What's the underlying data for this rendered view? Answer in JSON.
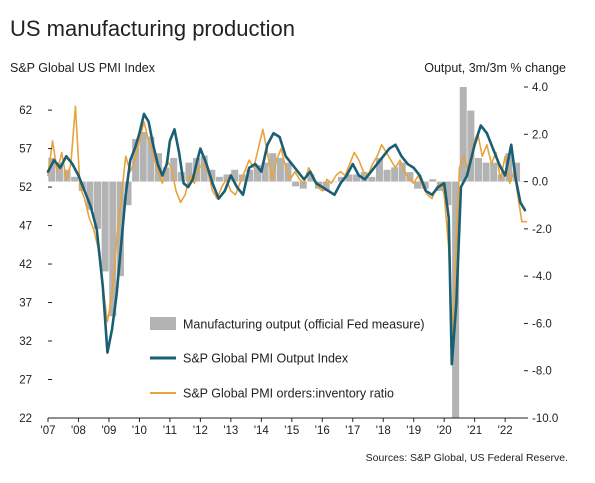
{
  "chart_data": {
    "type": "bar+line",
    "title": "US manufacturing production",
    "left_axis_label": "S&P Global US PMI Index",
    "right_axis_label": "Output, 3m/3m % change",
    "source": "Sources: S&P Global, US Federal Reserve.",
    "left_axis": {
      "ylim": [
        22,
        65
      ],
      "ticks": [
        22,
        27,
        32,
        37,
        42,
        47,
        52,
        57,
        62
      ]
    },
    "right_axis": {
      "ylim": [
        -10.0,
        4.0
      ],
      "ticks": [
        "-10.0",
        "-8.0",
        "-6.0",
        "-4.0",
        "-2.0",
        "0.0",
        "2.0",
        "4.0"
      ]
    },
    "x_axis": {
      "xlim": [
        2007.0,
        2022.75
      ],
      "ticks": [
        2007,
        2008,
        2009,
        2010,
        2011,
        2012,
        2013,
        2014,
        2015,
        2016,
        2017,
        2018,
        2019,
        2020,
        2021,
        2022
      ],
      "tick_labels": [
        "'07",
        "'08",
        "'09",
        "'10",
        "'11",
        "'12",
        "'13",
        "'14",
        "'15",
        "'16",
        "'17",
        "'18",
        "'19",
        "'20",
        "'21",
        "'22"
      ]
    },
    "grid": false,
    "legend": {
      "placement": "center-bottom",
      "entries": [
        "Manufacturing output (official Fed measure)",
        "S&P Global PMI Output Index",
        "S&P Global PMI orders:inventory ratio"
      ]
    },
    "series": [
      {
        "name": "Manufacturing output (official Fed measure)",
        "kind": "bar",
        "axis": "right",
        "color": "#b3b3b3",
        "points": [
          [
            2007.0,
            1.0
          ],
          [
            2007.25,
            0.8
          ],
          [
            2007.5,
            0.5
          ],
          [
            2007.75,
            0.2
          ],
          [
            2008.0,
            -0.4
          ],
          [
            2008.25,
            -1.2
          ],
          [
            2008.5,
            -2.0
          ],
          [
            2008.75,
            -3.8
          ],
          [
            2009.0,
            -5.7
          ],
          [
            2009.25,
            -4.0
          ],
          [
            2009.5,
            -1.0
          ],
          [
            2009.75,
            1.8
          ],
          [
            2010.0,
            2.1
          ],
          [
            2010.25,
            1.9
          ],
          [
            2010.5,
            1.2
          ],
          [
            2010.75,
            0.6
          ],
          [
            2011.0,
            1.0
          ],
          [
            2011.25,
            0.4
          ],
          [
            2011.5,
            0.8
          ],
          [
            2011.75,
            1.0
          ],
          [
            2012.0,
            1.1
          ],
          [
            2012.25,
            0.5
          ],
          [
            2012.5,
            0.2
          ],
          [
            2012.75,
            0.3
          ],
          [
            2013.0,
            0.5
          ],
          [
            2013.25,
            0.3
          ],
          [
            2013.5,
            0.5
          ],
          [
            2013.75,
            0.7
          ],
          [
            2014.0,
            0.8
          ],
          [
            2014.25,
            1.2
          ],
          [
            2014.5,
            1.0
          ],
          [
            2014.75,
            0.8
          ],
          [
            2015.0,
            -0.2
          ],
          [
            2015.25,
            -0.3
          ],
          [
            2015.5,
            0.3
          ],
          [
            2015.75,
            -0.3
          ],
          [
            2016.0,
            -0.4
          ],
          [
            2016.25,
            0.0
          ],
          [
            2016.5,
            0.2
          ],
          [
            2016.75,
            0.3
          ],
          [
            2017.0,
            0.3
          ],
          [
            2017.25,
            0.4
          ],
          [
            2017.5,
            0.2
          ],
          [
            2017.75,
            1.0
          ],
          [
            2018.0,
            0.5
          ],
          [
            2018.25,
            0.6
          ],
          [
            2018.5,
            0.8
          ],
          [
            2018.75,
            0.4
          ],
          [
            2019.0,
            -0.3
          ],
          [
            2019.25,
            -0.3
          ],
          [
            2019.5,
            0.1
          ],
          [
            2019.75,
            -0.4
          ],
          [
            2020.0,
            -1.0
          ],
          [
            2020.25,
            -10.0
          ],
          [
            2020.5,
            4.0
          ],
          [
            2020.75,
            3.0
          ],
          [
            2021.0,
            1.0
          ],
          [
            2021.25,
            0.8
          ],
          [
            2021.5,
            0.8
          ],
          [
            2021.75,
            0.3
          ],
          [
            2022.0,
            1.2
          ],
          [
            2022.25,
            0.8
          ],
          [
            2022.5,
            0.0
          ]
        ]
      },
      {
        "name": "S&P Global PMI Output Index",
        "kind": "line",
        "axis": "left",
        "color": "#1a5f73",
        "points": [
          [
            2007.0,
            54.0
          ],
          [
            2007.2,
            55.5
          ],
          [
            2007.4,
            54.5
          ],
          [
            2007.6,
            56.0
          ],
          [
            2007.8,
            55.0
          ],
          [
            2008.0,
            53.5
          ],
          [
            2008.2,
            51.5
          ],
          [
            2008.4,
            49.5
          ],
          [
            2008.6,
            46.5
          ],
          [
            2008.8,
            39.0
          ],
          [
            2008.95,
            30.5
          ],
          [
            2009.1,
            33.5
          ],
          [
            2009.25,
            38.0
          ],
          [
            2009.4,
            44.5
          ],
          [
            2009.55,
            51.0
          ],
          [
            2009.7,
            55.5
          ],
          [
            2009.85,
            57.0
          ],
          [
            2010.0,
            59.0
          ],
          [
            2010.15,
            61.5
          ],
          [
            2010.3,
            60.5
          ],
          [
            2010.45,
            57.5
          ],
          [
            2010.6,
            55.0
          ],
          [
            2010.75,
            53.5
          ],
          [
            2010.9,
            55.0
          ],
          [
            2011.0,
            58.0
          ],
          [
            2011.15,
            59.5
          ],
          [
            2011.3,
            56.5
          ],
          [
            2011.45,
            52.5
          ],
          [
            2011.6,
            52.0
          ],
          [
            2011.75,
            53.0
          ],
          [
            2011.9,
            55.5
          ],
          [
            2012.0,
            57.0
          ],
          [
            2012.2,
            55.0
          ],
          [
            2012.4,
            52.5
          ],
          [
            2012.6,
            50.5
          ],
          [
            2012.8,
            51.5
          ],
          [
            2013.0,
            53.5
          ],
          [
            2013.2,
            52.0
          ],
          [
            2013.4,
            51.0
          ],
          [
            2013.6,
            54.5
          ],
          [
            2013.8,
            55.0
          ],
          [
            2014.0,
            54.0
          ],
          [
            2014.2,
            57.5
          ],
          [
            2014.4,
            59.0
          ],
          [
            2014.6,
            58.5
          ],
          [
            2014.8,
            56.0
          ],
          [
            2015.0,
            55.0
          ],
          [
            2015.2,
            54.0
          ],
          [
            2015.4,
            53.0
          ],
          [
            2015.6,
            54.0
          ],
          [
            2015.8,
            52.5
          ],
          [
            2016.0,
            52.0
          ],
          [
            2016.2,
            51.5
          ],
          [
            2016.4,
            51.0
          ],
          [
            2016.6,
            52.5
          ],
          [
            2016.8,
            53.5
          ],
          [
            2017.0,
            55.0
          ],
          [
            2017.2,
            53.5
          ],
          [
            2017.4,
            53.0
          ],
          [
            2017.6,
            54.0
          ],
          [
            2017.8,
            55.0
          ],
          [
            2018.0,
            56.0
          ],
          [
            2018.2,
            57.0
          ],
          [
            2018.4,
            57.5
          ],
          [
            2018.6,
            56.0
          ],
          [
            2018.8,
            55.0
          ],
          [
            2019.0,
            54.5
          ],
          [
            2019.2,
            53.5
          ],
          [
            2019.4,
            51.5
          ],
          [
            2019.6,
            51.0
          ],
          [
            2019.8,
            52.0
          ],
          [
            2020.0,
            52.5
          ],
          [
            2020.15,
            48.0
          ],
          [
            2020.25,
            29.0
          ],
          [
            2020.4,
            37.0
          ],
          [
            2020.55,
            52.0
          ],
          [
            2020.75,
            53.5
          ],
          [
            2021.0,
            57.5
          ],
          [
            2021.2,
            60.0
          ],
          [
            2021.4,
            59.0
          ],
          [
            2021.6,
            57.0
          ],
          [
            2021.8,
            55.0
          ],
          [
            2022.0,
            53.5
          ],
          [
            2022.2,
            57.5
          ],
          [
            2022.35,
            53.0
          ],
          [
            2022.5,
            50.0
          ],
          [
            2022.65,
            49.0
          ]
        ]
      },
      {
        "name": "S&P Global PMI orders:inventory ratio",
        "kind": "line",
        "axis": "left",
        "color": "#e8a33d",
        "points": [
          [
            2007.0,
            53.5
          ],
          [
            2007.15,
            58.0
          ],
          [
            2007.3,
            54.0
          ],
          [
            2007.45,
            56.5
          ],
          [
            2007.6,
            53.0
          ],
          [
            2007.75,
            55.0
          ],
          [
            2007.9,
            62.5
          ],
          [
            2008.05,
            52.0
          ],
          [
            2008.2,
            50.5
          ],
          [
            2008.35,
            48.0
          ],
          [
            2008.5,
            46.5
          ],
          [
            2008.65,
            44.0
          ],
          [
            2008.8,
            39.0
          ],
          [
            2008.95,
            34.5
          ],
          [
            2009.1,
            38.0
          ],
          [
            2009.25,
            45.0
          ],
          [
            2009.4,
            50.5
          ],
          [
            2009.55,
            56.0
          ],
          [
            2009.7,
            54.0
          ],
          [
            2009.85,
            55.5
          ],
          [
            2010.0,
            58.0
          ],
          [
            2010.15,
            60.5
          ],
          [
            2010.3,
            58.0
          ],
          [
            2010.45,
            56.5
          ],
          [
            2010.6,
            54.0
          ],
          [
            2010.75,
            52.5
          ],
          [
            2010.9,
            55.5
          ],
          [
            2011.05,
            54.5
          ],
          [
            2011.2,
            51.5
          ],
          [
            2011.35,
            50.0
          ],
          [
            2011.5,
            51.0
          ],
          [
            2011.65,
            53.5
          ],
          [
            2011.8,
            52.5
          ],
          [
            2011.95,
            54.5
          ],
          [
            2012.1,
            55.0
          ],
          [
            2012.25,
            54.0
          ],
          [
            2012.4,
            51.5
          ],
          [
            2012.55,
            50.5
          ],
          [
            2012.7,
            52.0
          ],
          [
            2012.85,
            53.0
          ],
          [
            2013.0,
            51.5
          ],
          [
            2013.15,
            51.0
          ],
          [
            2013.3,
            52.5
          ],
          [
            2013.45,
            54.0
          ],
          [
            2013.6,
            55.5
          ],
          [
            2013.75,
            54.5
          ],
          [
            2013.9,
            57.0
          ],
          [
            2014.05,
            59.5
          ],
          [
            2014.2,
            56.5
          ],
          [
            2014.35,
            53.0
          ],
          [
            2014.5,
            55.5
          ],
          [
            2014.65,
            57.0
          ],
          [
            2014.8,
            54.5
          ],
          [
            2014.95,
            53.0
          ],
          [
            2015.1,
            54.0
          ],
          [
            2015.25,
            53.0
          ],
          [
            2015.4,
            52.5
          ],
          [
            2015.55,
            54.5
          ],
          [
            2015.7,
            53.5
          ],
          [
            2015.85,
            52.0
          ],
          [
            2016.0,
            51.5
          ],
          [
            2016.15,
            53.0
          ],
          [
            2016.3,
            52.5
          ],
          [
            2016.45,
            53.5
          ],
          [
            2016.6,
            54.0
          ],
          [
            2016.75,
            53.5
          ],
          [
            2016.9,
            55.0
          ],
          [
            2017.05,
            56.5
          ],
          [
            2017.2,
            55.5
          ],
          [
            2017.35,
            54.0
          ],
          [
            2017.5,
            53.5
          ],
          [
            2017.65,
            55.0
          ],
          [
            2017.8,
            56.0
          ],
          [
            2017.95,
            57.5
          ],
          [
            2018.1,
            56.5
          ],
          [
            2018.25,
            55.5
          ],
          [
            2018.4,
            54.5
          ],
          [
            2018.55,
            55.5
          ],
          [
            2018.7,
            54.0
          ],
          [
            2018.85,
            53.0
          ],
          [
            2019.0,
            52.5
          ],
          [
            2019.15,
            53.5
          ],
          [
            2019.3,
            52.0
          ],
          [
            2019.45,
            51.0
          ],
          [
            2019.6,
            50.5
          ],
          [
            2019.75,
            52.0
          ],
          [
            2019.9,
            52.5
          ],
          [
            2020.0,
            51.0
          ],
          [
            2020.15,
            44.0
          ],
          [
            2020.25,
            33.0
          ],
          [
            2020.35,
            40.0
          ],
          [
            2020.5,
            54.5
          ],
          [
            2020.65,
            56.0
          ],
          [
            2020.8,
            54.0
          ],
          [
            2020.95,
            57.5
          ],
          [
            2021.1,
            59.0
          ],
          [
            2021.25,
            56.0
          ],
          [
            2021.4,
            57.5
          ],
          [
            2021.55,
            55.0
          ],
          [
            2021.7,
            56.5
          ],
          [
            2021.85,
            53.0
          ],
          [
            2022.0,
            56.0
          ],
          [
            2022.15,
            52.5
          ],
          [
            2022.3,
            54.0
          ],
          [
            2022.45,
            50.0
          ],
          [
            2022.55,
            47.5
          ],
          [
            2022.7,
            47.5
          ]
        ]
      }
    ]
  }
}
